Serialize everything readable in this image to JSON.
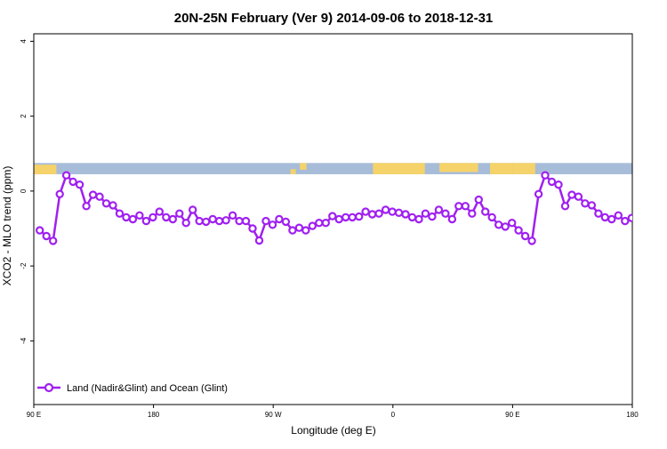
{
  "chart_data": {
    "type": "line",
    "title": "20N-25N February (Ver 9)   2014-09-06 to 2018-12-31",
    "xlabel": "Longitude (deg E)",
    "ylabel": "XCO2 - MLO trend (ppm)",
    "xlim": [
      90,
      540
    ],
    "ylim": [
      -5.7,
      4.2
    ],
    "x_ticks": [
      {
        "value": 90,
        "label": "90 E"
      },
      {
        "value": 180,
        "label": "180"
      },
      {
        "value": 270,
        "label": "90 W"
      },
      {
        "value": 360,
        "label": "0"
      },
      {
        "value": 450,
        "label": "90 E"
      },
      {
        "value": 540,
        "label": "180"
      }
    ],
    "y_ticks": [
      {
        "value": -4,
        "label": "-4"
      },
      {
        "value": -2,
        "label": "-2"
      },
      {
        "value": 0,
        "label": "0"
      },
      {
        "value": 2,
        "label": "2"
      },
      {
        "value": 4,
        "label": "4"
      }
    ],
    "grid": false,
    "legend_position": "bottom-left",
    "colors": {
      "series": "#a020f0",
      "land": "#f5d36a",
      "ocean": "#a7bcd9"
    },
    "map_strip": {
      "y_top": 0.75,
      "y_bottom": 0.45
    },
    "series": [
      {
        "name": "Land (Nadir&Glint) and Ocean (Glint)",
        "x": [
          94.5,
          99.5,
          104.5,
          109.5,
          114.5,
          119.5,
          124.5,
          129.5,
          134.5,
          139.5,
          144.5,
          149.5,
          154.5,
          159.5,
          164.5,
          169.5,
          174.5,
          179.5,
          184.5,
          189.5,
          194.5,
          199.5,
          204.5,
          209.5,
          214.5,
          219.5,
          224.5,
          229.5,
          234.5,
          239.5,
          244.5,
          249.5,
          254.5,
          259.5,
          264.5,
          269.5,
          274.5,
          279.5,
          284.5,
          289.5,
          294.5,
          299.5,
          304.5,
          309.5,
          314.5,
          319.5,
          324.5,
          329.5,
          334.5,
          339.5,
          344.5,
          349.5,
          354.5,
          359.5,
          364.5,
          369.5,
          374.5,
          379.5,
          384.5,
          389.5,
          394.5,
          399.5,
          404.5,
          409.5,
          414.5,
          419.5,
          424.5,
          429.5,
          434.5,
          439.5,
          444.5,
          449.5,
          454.5,
          459.5,
          464.5,
          469.5,
          474.5,
          479.5,
          484.5,
          489.5,
          494.5,
          499.5,
          504.5,
          509.5,
          514.5,
          519.5,
          524.5,
          529.5,
          534.5,
          539.5
        ],
        "y": [
          -1.05,
          -1.2,
          -1.33,
          -0.08,
          0.42,
          0.25,
          0.17,
          -0.4,
          -0.1,
          -0.15,
          -0.33,
          -0.38,
          -0.6,
          -0.7,
          -0.75,
          -0.65,
          -0.8,
          -0.7,
          -0.55,
          -0.7,
          -0.75,
          -0.6,
          -0.85,
          -0.5,
          -0.8,
          -0.82,
          -0.75,
          -0.8,
          -0.78,
          -0.65,
          -0.8,
          -0.8,
          -1.0,
          -1.32,
          -0.8,
          -0.9,
          -0.75,
          -0.82,
          -1.05,
          -0.98,
          -1.05,
          -0.93,
          -0.85,
          -0.85,
          -0.67,
          -0.75,
          -0.7,
          -0.7,
          -0.68,
          -0.55,
          -0.62,
          -0.6,
          -0.5,
          -0.55,
          -0.58,
          -0.62,
          -0.7,
          -0.75,
          -0.6,
          -0.68,
          -0.5,
          -0.6,
          -0.75,
          -0.4,
          -0.4,
          -0.6,
          -0.23,
          -0.55,
          -0.7,
          -0.9,
          -0.95,
          -0.85,
          -1.05,
          -1.2,
          -1.33,
          -0.08,
          0.42,
          0.25,
          0.17,
          -0.4,
          -0.1,
          -0.15,
          -0.33,
          -0.38,
          -0.6,
          -0.7,
          -0.75,
          -0.65,
          -0.8,
          -0.72
        ]
      }
    ]
  }
}
